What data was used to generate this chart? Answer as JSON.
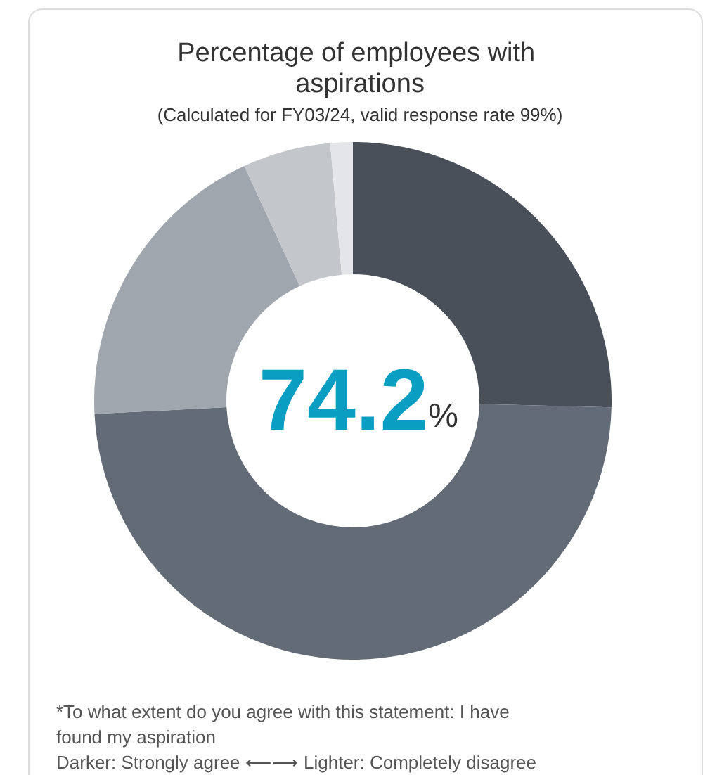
{
  "chart_data": {
    "type": "donut",
    "title": "Percentage of employees with aspirations",
    "subtitle": "(Calculated for FY03/24, valid response rate 99%)",
    "categories": [
      null,
      null,
      null,
      null,
      null
    ],
    "values": [
      25.4,
      48.8,
      18.9,
      5.5,
      1.4
    ],
    "colors": [
      "#4a5059",
      "#636b76",
      "#a0a6ad",
      "#c3c7cc",
      "#e3e5e8"
    ],
    "annotations": [
      "74.2%",
      "*To what extent do you agree with this statement: I have found my aspiration",
      "Darker: Strongly agree ⟵⟶ Lighter: Completely disagree"
    ]
  }
}
